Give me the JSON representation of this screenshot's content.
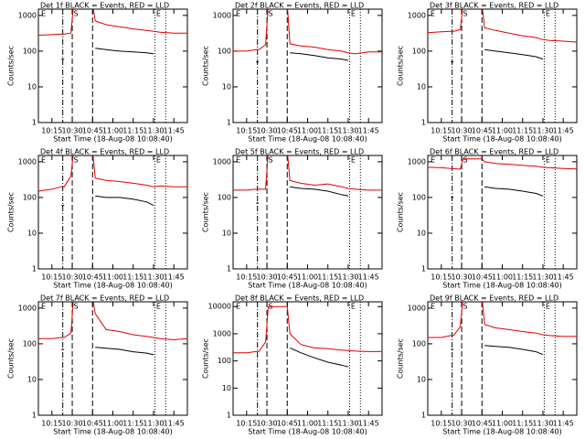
{
  "chart_data": [
    {
      "type": "line",
      "title": "Det 1f BLACK = Events, RED = LLD",
      "ylabel": "Counts/sec",
      "xlabel": "Start Time (18-Aug-08 10:08:40)",
      "log": true,
      "xlim": [
        "10:05",
        "11:55"
      ],
      "ylim": [
        1,
        1500
      ],
      "yticks": [
        1,
        10,
        100,
        1000
      ],
      "xticks": [
        "10:15",
        "10:30",
        "10:45",
        "11:00",
        "11:15",
        "11:30",
        "11:45"
      ],
      "x": [
        "10:05",
        "10:15",
        "10:22",
        "10:24",
        "10:29",
        "10:31",
        "10:45",
        "10:47",
        "10:55",
        "11:05",
        "11:15",
        "11:25",
        "11:30",
        "11:35",
        "11:45",
        "11:55"
      ],
      "series": [
        {
          "color": "#e00000",
          "values": [
            280,
            290,
            300,
            300,
            320,
            2000,
            2000,
            700,
            550,
            480,
            420,
            380,
            360,
            340,
            320,
            320
          ]
        },
        {
          "color": "#000000",
          "values": [
            null,
            null,
            60,
            60,
            null,
            null,
            null,
            120,
            110,
            100,
            95,
            90,
            85,
            null,
            null,
            null
          ]
        }
      ],
      "vlines": [
        {
          "x": "10:23",
          "style": "dashdot"
        },
        {
          "x": "10:30",
          "style": "dashed"
        },
        {
          "x": "10:45",
          "style": "dashed"
        },
        {
          "x": "11:31",
          "style": "dotted"
        },
        {
          "x": "11:39",
          "style": "dotted"
        }
      ],
      "markers": [
        {
          "label": "E",
          "x": "10:07"
        },
        {
          "label": "S",
          "x": "10:31"
        },
        {
          "label": "E",
          "x": "11:32"
        }
      ]
    },
    {
      "type": "line",
      "title": "Det 2f BLACK = Events, RED = LLD",
      "ylabel": "Counts/sec",
      "xlabel": "Start Time (18-Aug-08 10:08:40)",
      "log": true,
      "xlim": [
        "10:05",
        "11:55"
      ],
      "ylim": [
        1,
        1500
      ],
      "yticks": [
        1,
        10,
        100,
        1000
      ],
      "xticks": [
        "10:15",
        "10:30",
        "10:45",
        "11:00",
        "11:15",
        "11:30",
        "11:45"
      ],
      "x": [
        "10:05",
        "10:15",
        "10:22",
        "10:24",
        "10:29",
        "10:31",
        "10:45",
        "10:47",
        "10:55",
        "11:05",
        "11:15",
        "11:25",
        "11:30",
        "11:35",
        "11:45",
        "11:55"
      ],
      "series": [
        {
          "color": "#e00000",
          "values": [
            100,
            100,
            110,
            110,
            150,
            2000,
            2000,
            160,
            140,
            130,
            110,
            100,
            90,
            85,
            95,
            95
          ]
        },
        {
          "color": "#000000",
          "values": [
            null,
            null,
            50,
            50,
            null,
            null,
            null,
            90,
            85,
            75,
            65,
            60,
            55,
            null,
            null,
            null
          ]
        }
      ],
      "vlines": [
        {
          "x": "10:23",
          "style": "dashdot"
        },
        {
          "x": "10:30",
          "style": "dashed"
        },
        {
          "x": "10:45",
          "style": "dashed"
        },
        {
          "x": "11:31",
          "style": "dotted"
        },
        {
          "x": "11:39",
          "style": "dotted"
        }
      ],
      "markers": [
        {
          "label": "E",
          "x": "10:07"
        },
        {
          "label": "S",
          "x": "10:31"
        },
        {
          "label": "E",
          "x": "11:32"
        }
      ]
    },
    {
      "type": "line",
      "title": "Det 3f BLACK = Events, RED = LLD",
      "ylabel": "Counts/sec",
      "xlabel": "Start Time (18-Aug-08 10:08:40)",
      "log": true,
      "xlim": [
        "10:05",
        "11:55"
      ],
      "ylim": [
        1,
        1500
      ],
      "yticks": [
        1,
        10,
        100,
        1000
      ],
      "xticks": [
        "10:15",
        "10:30",
        "10:45",
        "11:00",
        "11:15",
        "11:30",
        "11:45"
      ],
      "x": [
        "10:05",
        "10:15",
        "10:22",
        "10:24",
        "10:29",
        "10:31",
        "10:45",
        "10:47",
        "10:55",
        "11:05",
        "11:15",
        "11:25",
        "11:30",
        "11:35",
        "11:45",
        "11:55"
      ],
      "series": [
        {
          "color": "#e00000",
          "values": [
            330,
            350,
            360,
            360,
            400,
            2000,
            2000,
            450,
            380,
            320,
            270,
            240,
            210,
            200,
            190,
            180
          ]
        },
        {
          "color": "#000000",
          "values": [
            null,
            null,
            50,
            50,
            null,
            null,
            null,
            110,
            100,
            90,
            80,
            70,
            60,
            null,
            null,
            null
          ]
        }
      ],
      "vlines": [
        {
          "x": "10:23",
          "style": "dashdot"
        },
        {
          "x": "10:30",
          "style": "dashed"
        },
        {
          "x": "10:45",
          "style": "dashed"
        },
        {
          "x": "11:31",
          "style": "dotted"
        },
        {
          "x": "11:39",
          "style": "dotted"
        }
      ],
      "markers": [
        {
          "label": "E",
          "x": "10:07"
        },
        {
          "label": "S",
          "x": "10:31"
        },
        {
          "label": "E",
          "x": "11:32"
        }
      ]
    },
    {
      "type": "line",
      "title": "Det 4f BLACK = Events, RED = LLD",
      "ylabel": "Counts/sec",
      "xlabel": "Start Time (18-Aug-08 10:08:40)",
      "log": true,
      "xlim": [
        "10:05",
        "11:55"
      ],
      "ylim": [
        1,
        1500
      ],
      "yticks": [
        1,
        10,
        100,
        1000
      ],
      "xticks": [
        "10:15",
        "10:30",
        "10:45",
        "11:00",
        "11:15",
        "11:30",
        "11:45"
      ],
      "x": [
        "10:05",
        "10:15",
        "10:22",
        "10:24",
        "10:29",
        "10:31",
        "10:45",
        "10:47",
        "10:55",
        "11:05",
        "11:15",
        "11:25",
        "11:30",
        "11:35",
        "11:45",
        "11:55"
      ],
      "series": [
        {
          "color": "#e00000",
          "values": [
            150,
            170,
            200,
            200,
            400,
            2000,
            2000,
            350,
            300,
            280,
            250,
            220,
            200,
            210,
            200,
            200
          ]
        },
        {
          "color": "#000000",
          "values": [
            null,
            null,
            60,
            60,
            null,
            null,
            null,
            110,
            100,
            100,
            90,
            75,
            60,
            null,
            null,
            null
          ]
        }
      ],
      "vlines": [
        {
          "x": "10:23",
          "style": "dashdot"
        },
        {
          "x": "10:30",
          "style": "dashed"
        },
        {
          "x": "10:45",
          "style": "dashed"
        },
        {
          "x": "11:31",
          "style": "dotted"
        },
        {
          "x": "11:39",
          "style": "dotted"
        }
      ],
      "markers": [
        {
          "label": "E",
          "x": "10:07"
        },
        {
          "label": "S",
          "x": "10:31"
        },
        {
          "label": "E",
          "x": "11:32"
        }
      ]
    },
    {
      "type": "line",
      "title": "Det 5f BLACK = Events, RED = LLD",
      "ylabel": "Counts/sec",
      "xlabel": "Start Time (18-Aug-08 10:08:40)",
      "log": true,
      "xlim": [
        "10:05",
        "11:55"
      ],
      "ylim": [
        1,
        1500
      ],
      "yticks": [
        1,
        10,
        100,
        1000
      ],
      "xticks": [
        "10:15",
        "10:30",
        "10:45",
        "11:00",
        "11:15",
        "11:30",
        "11:45"
      ],
      "x": [
        "10:05",
        "10:15",
        "10:22",
        "10:24",
        "10:29",
        "10:31",
        "10:45",
        "10:47",
        "10:55",
        "11:05",
        "11:15",
        "11:25",
        "11:30",
        "11:35",
        "11:45",
        "11:55"
      ],
      "series": [
        {
          "color": "#e00000",
          "values": [
            160,
            160,
            170,
            170,
            170,
            2000,
            2000,
            300,
            250,
            220,
            240,
            200,
            180,
            170,
            160,
            160
          ]
        },
        {
          "color": "#000000",
          "values": [
            null,
            null,
            70,
            70,
            null,
            null,
            null,
            200,
            180,
            170,
            150,
            120,
            110,
            null,
            null,
            null
          ]
        }
      ],
      "vlines": [
        {
          "x": "10:23",
          "style": "dashdot"
        },
        {
          "x": "10:30",
          "style": "dashed"
        },
        {
          "x": "10:45",
          "style": "dashed"
        },
        {
          "x": "11:31",
          "style": "dotted"
        },
        {
          "x": "11:39",
          "style": "dotted"
        }
      ],
      "markers": [
        {
          "label": "E",
          "x": "10:07"
        },
        {
          "label": "S",
          "x": "10:31"
        },
        {
          "label": "E",
          "x": "11:32"
        }
      ]
    },
    {
      "type": "line",
      "title": "Det 6f BLACK = Events, RED = LLD",
      "ylabel": "Counts/sec",
      "xlabel": "Start Time (18-Aug-08 10:08:40)",
      "log": true,
      "xlim": [
        "10:05",
        "11:55"
      ],
      "ylim": [
        1,
        1500
      ],
      "yticks": [
        1,
        10,
        100,
        1000
      ],
      "xticks": [
        "10:15",
        "10:30",
        "10:45",
        "11:00",
        "11:15",
        "11:30",
        "11:45"
      ],
      "x": [
        "10:05",
        "10:15",
        "10:22",
        "10:24",
        "10:29",
        "10:31",
        "10:45",
        "10:47",
        "10:55",
        "11:05",
        "11:15",
        "11:25",
        "11:30",
        "11:35",
        "11:45",
        "11:55"
      ],
      "series": [
        {
          "color": "#e00000",
          "values": [
            700,
            680,
            650,
            640,
            620,
            1200,
            1200,
            1000,
            900,
            850,
            800,
            750,
            700,
            680,
            650,
            630
          ]
        },
        {
          "color": "#000000",
          "values": [
            null,
            null,
            100,
            100,
            null,
            null,
            null,
            200,
            180,
            170,
            150,
            130,
            110,
            null,
            null,
            null
          ]
        }
      ],
      "vlines": [
        {
          "x": "10:23",
          "style": "dashdot"
        },
        {
          "x": "10:30",
          "style": "dashed"
        },
        {
          "x": "10:45",
          "style": "dashed"
        },
        {
          "x": "11:31",
          "style": "dotted"
        },
        {
          "x": "11:39",
          "style": "dotted"
        }
      ],
      "markers": [
        {
          "label": "E",
          "x": "10:07"
        },
        {
          "label": "S",
          "x": "10:31"
        },
        {
          "label": "E",
          "x": "11:32"
        }
      ]
    },
    {
      "type": "line",
      "title": "Det 7f BLACK = Events, RED = LLD",
      "ylabel": "Counts/sec",
      "xlabel": "Start Time (18-Aug-08 10:08:40)",
      "log": true,
      "xlim": [
        "10:05",
        "11:55"
      ],
      "ylim": [
        1,
        1500
      ],
      "yticks": [
        1,
        10,
        100,
        1000
      ],
      "xticks": [
        "10:15",
        "10:30",
        "10:45",
        "11:00",
        "11:15",
        "11:30",
        "11:45"
      ],
      "x": [
        "10:05",
        "10:15",
        "10:22",
        "10:24",
        "10:29",
        "10:31",
        "10:45",
        "10:47",
        "10:55",
        "11:05",
        "11:15",
        "11:25",
        "11:30",
        "11:35",
        "11:45",
        "11:55"
      ],
      "series": [
        {
          "color": "#e00000",
          "values": [
            140,
            140,
            150,
            150,
            200,
            2000,
            2000,
            700,
            250,
            220,
            180,
            160,
            150,
            140,
            130,
            140
          ]
        },
        {
          "color": "#000000",
          "values": [
            null,
            null,
            70,
            70,
            null,
            null,
            null,
            80,
            75,
            70,
            60,
            55,
            50,
            null,
            null,
            null
          ]
        }
      ],
      "vlines": [
        {
          "x": "10:23",
          "style": "dashdot"
        },
        {
          "x": "10:30",
          "style": "dashed"
        },
        {
          "x": "10:45",
          "style": "dashed"
        },
        {
          "x": "11:31",
          "style": "dotted"
        },
        {
          "x": "11:39",
          "style": "dotted"
        }
      ],
      "markers": [
        {
          "label": "E",
          "x": "10:07"
        },
        {
          "label": "S",
          "x": "10:31"
        },
        {
          "label": "E",
          "x": "11:32"
        }
      ]
    },
    {
      "type": "line",
      "title": "Det 8f BLACK = Events, RED = LLD",
      "ylabel": "Counts/sec",
      "xlabel": "Start Time (18-Aug-08 10:08:40)",
      "log": true,
      "xlim": [
        "10:05",
        "11:55"
      ],
      "ylim": [
        1,
        15000
      ],
      "yticks": [
        1,
        10,
        100,
        1000,
        10000
      ],
      "xticks": [
        "10:15",
        "10:30",
        "10:45",
        "11:00",
        "11:15",
        "11:30",
        "11:45"
      ],
      "x": [
        "10:05",
        "10:15",
        "10:22",
        "10:24",
        "10:29",
        "10:31",
        "10:45",
        "10:47",
        "10:55",
        "11:05",
        "11:15",
        "11:25",
        "11:30",
        "11:35",
        "11:45",
        "11:55"
      ],
      "series": [
        {
          "color": "#e00000",
          "values": [
            200,
            200,
            220,
            220,
            500,
            10000,
            10000,
            1000,
            400,
            300,
            280,
            250,
            240,
            230,
            220,
            220
          ]
        },
        {
          "color": "#000000",
          "values": [
            null,
            null,
            null,
            null,
            null,
            null,
            null,
            300,
            200,
            130,
            90,
            70,
            60,
            null,
            null,
            null
          ]
        }
      ],
      "vlines": [
        {
          "x": "10:23",
          "style": "dashdot"
        },
        {
          "x": "10:30",
          "style": "dashed"
        },
        {
          "x": "10:45",
          "style": "dashed"
        },
        {
          "x": "11:31",
          "style": "dotted"
        },
        {
          "x": "11:39",
          "style": "dotted"
        }
      ],
      "markers": [
        {
          "label": "E",
          "x": "10:07"
        },
        {
          "label": "S",
          "x": "10:31"
        },
        {
          "label": "E",
          "x": "11:32"
        }
      ]
    },
    {
      "type": "line",
      "title": "Det 9f BLACK = Events, RED = LLD",
      "ylabel": "Counts/sec",
      "xlabel": "Start Time (18-Aug-08 10:08:40)",
      "log": true,
      "xlim": [
        "10:05",
        "11:55"
      ],
      "ylim": [
        1,
        1500
      ],
      "yticks": [
        1,
        10,
        100,
        1000
      ],
      "xticks": [
        "10:15",
        "10:30",
        "10:45",
        "11:00",
        "11:15",
        "11:30",
        "11:45"
      ],
      "x": [
        "10:05",
        "10:15",
        "10:22",
        "10:24",
        "10:29",
        "10:31",
        "10:45",
        "10:47",
        "10:55",
        "11:05",
        "11:15",
        "11:25",
        "11:30",
        "11:35",
        "11:45",
        "11:55"
      ],
      "series": [
        {
          "color": "#e00000",
          "values": [
            150,
            150,
            170,
            170,
            300,
            2000,
            2000,
            350,
            280,
            250,
            220,
            200,
            180,
            170,
            160,
            160
          ]
        },
        {
          "color": "#000000",
          "values": [
            null,
            null,
            70,
            70,
            null,
            null,
            null,
            90,
            85,
            80,
            70,
            60,
            50,
            null,
            null,
            null
          ]
        }
      ],
      "vlines": [
        {
          "x": "10:23",
          "style": "dashdot"
        },
        {
          "x": "10:30",
          "style": "dashed"
        },
        {
          "x": "10:45",
          "style": "dashed"
        },
        {
          "x": "11:31",
          "style": "dotted"
        },
        {
          "x": "11:39",
          "style": "dotted"
        }
      ],
      "markers": [
        {
          "label": "E",
          "x": "10:07"
        },
        {
          "label": "S",
          "x": "10:31"
        },
        {
          "label": "E",
          "x": "11:32"
        }
      ]
    }
  ]
}
